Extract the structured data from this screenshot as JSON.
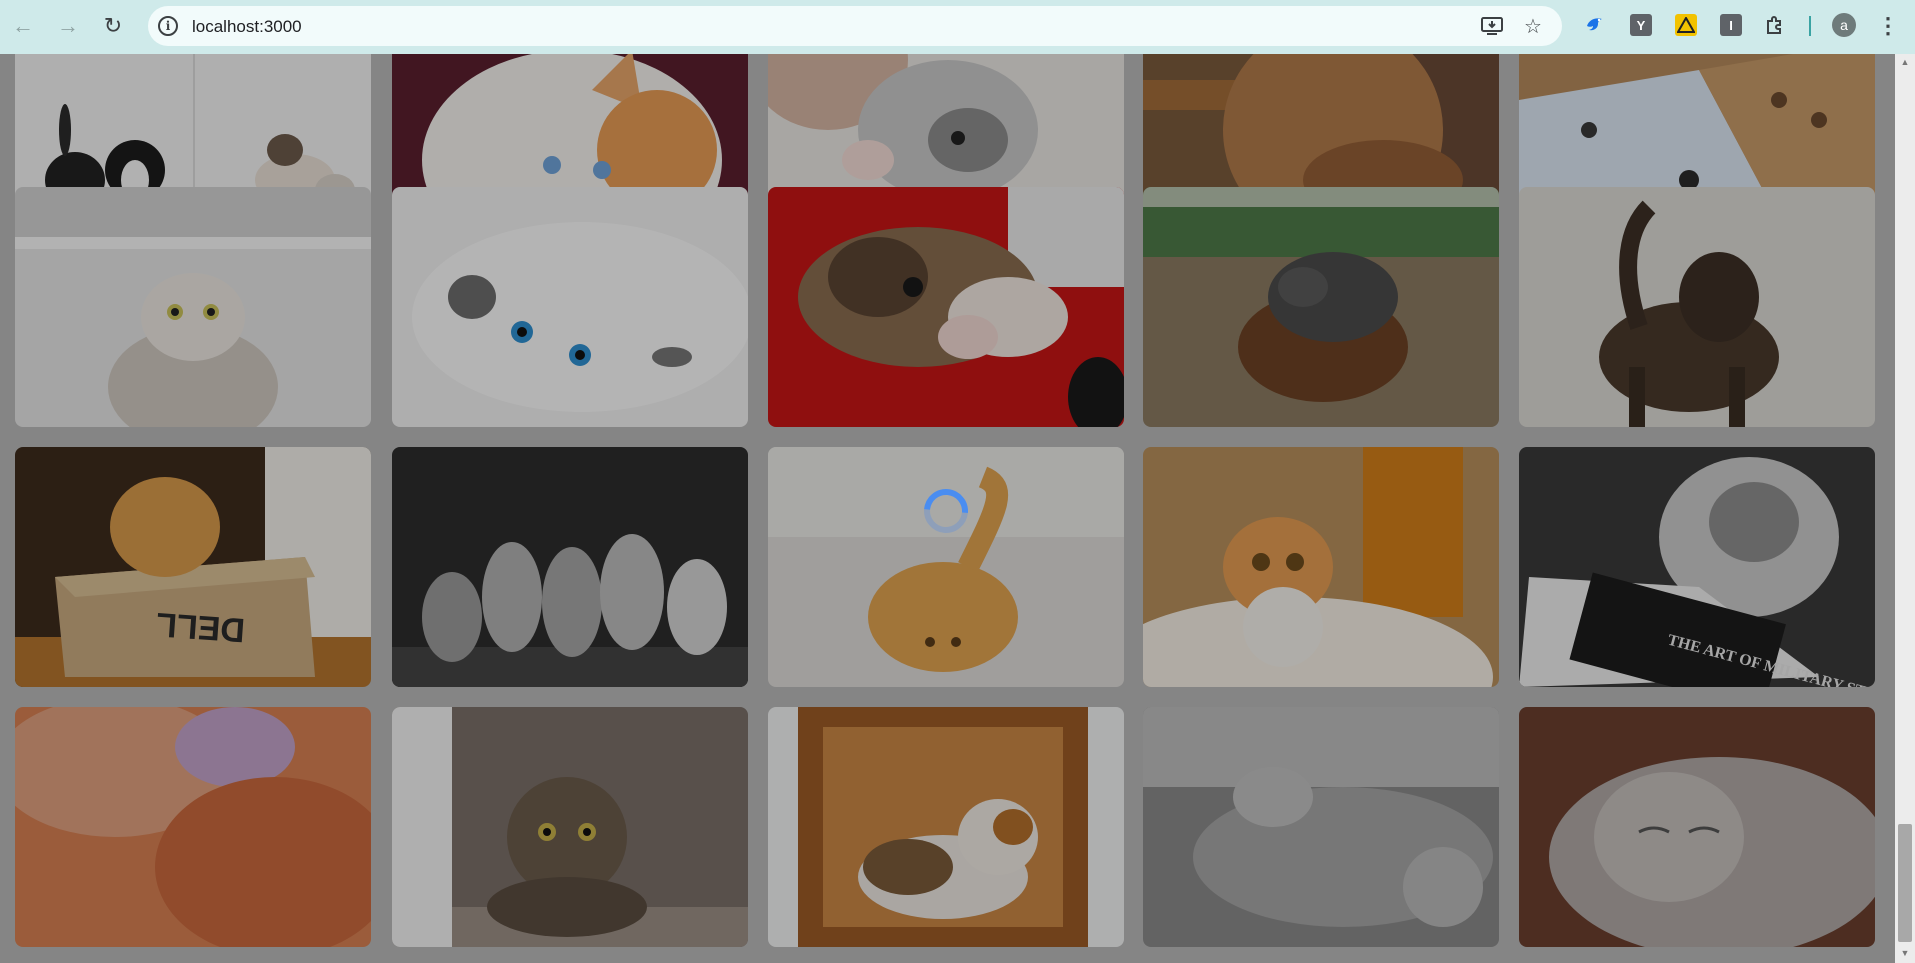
{
  "browser": {
    "url": "localhost:3000",
    "profile_initial": "a",
    "extensions": [
      {
        "name": "bird-extension-icon",
        "color": "#1a73e8"
      },
      {
        "name": "y-extension-icon",
        "label": "Y",
        "color": "#5f6368"
      },
      {
        "name": "warning-extension-icon",
        "color": "#f2c200"
      },
      {
        "name": "i-extension-icon",
        "label": "I",
        "color": "#5f6368"
      }
    ]
  },
  "gallery": {
    "loading": true,
    "images": [
      {
        "alt": "bunnies and kittens"
      },
      {
        "alt": "white kitten blue eyes"
      },
      {
        "alt": "grey kitten paws"
      },
      {
        "alt": "ginger cat on rug"
      },
      {
        "alt": "cats on bed overhead"
      },
      {
        "alt": "cat looking up"
      },
      {
        "alt": "white kitten lying"
      },
      {
        "alt": "kitten on red blanket"
      },
      {
        "alt": "cat and dog sleeping"
      },
      {
        "alt": "dark kitten walking"
      },
      {
        "alt": "cat on dell box"
      },
      {
        "alt": "five kittens grayscale"
      },
      {
        "alt": "ginger cat lying flat"
      },
      {
        "alt": "ginger kitten on sink"
      },
      {
        "alt": "cat reading book"
      },
      {
        "alt": "ginger fur closeup"
      },
      {
        "alt": "tabby kitten"
      },
      {
        "alt": "calico cat in box"
      },
      {
        "alt": "grey cat on back"
      },
      {
        "alt": "grey cat sleeping"
      }
    ],
    "book_text": "THE ART OF MILITARY STRATEGY",
    "box_text": "DELL"
  }
}
